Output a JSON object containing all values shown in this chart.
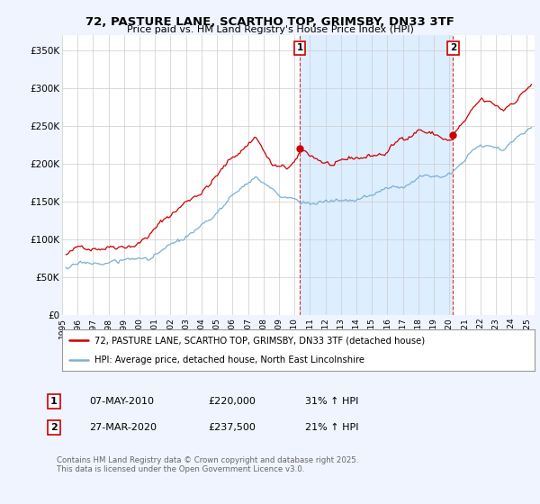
{
  "title": "72, PASTURE LANE, SCARTHO TOP, GRIMSBY, DN33 3TF",
  "subtitle": "Price paid vs. HM Land Registry's House Price Index (HPI)",
  "yticks": [
    0,
    50000,
    100000,
    150000,
    200000,
    250000,
    300000,
    350000
  ],
  "ytick_labels": [
    "£0",
    "£50K",
    "£100K",
    "£150K",
    "£200K",
    "£250K",
    "£300K",
    "£350K"
  ],
  "ylim": [
    0,
    370000
  ],
  "xlim_start": 1995.0,
  "xlim_end": 2025.5,
  "red_color": "#cc0000",
  "blue_color": "#7ab0d4",
  "shade_color": "#ddeeff",
  "marker1_x": 2010.35,
  "marker2_x": 2020.23,
  "marker1_label": "1",
  "marker2_label": "2",
  "marker1_price": 220000,
  "marker2_price": 237500,
  "legend_line1": "72, PASTURE LANE, SCARTHO TOP, GRIMSBY, DN33 3TF (detached house)",
  "legend_line2": "HPI: Average price, detached house, North East Lincolnshire",
  "table_row1": [
    "1",
    "07-MAY-2010",
    "£220,000",
    "31% ↑ HPI"
  ],
  "table_row2": [
    "2",
    "27-MAR-2020",
    "£237,500",
    "21% ↑ HPI"
  ],
  "footnote": "Contains HM Land Registry data © Crown copyright and database right 2025.\nThis data is licensed under the Open Government Licence v3.0.",
  "background_color": "#f0f4ff",
  "plot_bg_color": "#ffffff"
}
